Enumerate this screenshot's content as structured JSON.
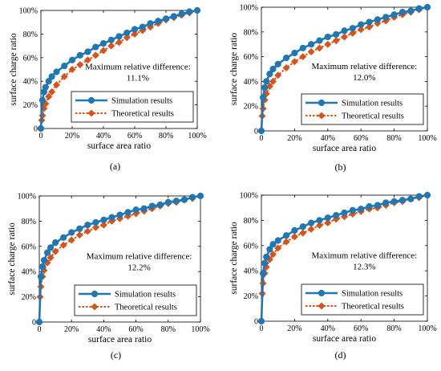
{
  "chart_data": [
    {
      "type": "line",
      "caption": "(a)",
      "xlabel": "surface area ratio",
      "ylabel": "surface charge ratio",
      "xlim": [
        0,
        100
      ],
      "ylim": [
        0,
        100
      ],
      "xticks": [
        "0",
        "20%",
        "40%",
        "60%",
        "80%",
        "100%"
      ],
      "yticks": [
        "0",
        "20%",
        "40%",
        "60%",
        "80%",
        "100%"
      ],
      "annotation": [
        "Maximum relative difference:",
        "11.1%"
      ],
      "legend_position": "lower-right",
      "series": [
        {
          "name": "Simulation results",
          "color": "#1f77b4",
          "marker": "circle",
          "x": [
            0,
            1,
            2,
            3,
            5,
            7,
            10,
            15,
            20,
            25,
            30,
            35,
            40,
            45,
            50,
            55,
            60,
            65,
            70,
            75,
            80,
            85,
            90,
            95,
            100
          ],
          "y": [
            0,
            24,
            31,
            35,
            40,
            44,
            48,
            53,
            58,
            62,
            65,
            69,
            72,
            75,
            78,
            81,
            84,
            86,
            89,
            91,
            93,
            95,
            97,
            99,
            100
          ]
        },
        {
          "name": "Theoretical results",
          "color": "#d95319",
          "marker": "diamond",
          "x": [
            0,
            0.5,
            1,
            2,
            3,
            5,
            7,
            10,
            15,
            20,
            25,
            30,
            35,
            40,
            45,
            50,
            55,
            60,
            65,
            70,
            75,
            80,
            85,
            90,
            95,
            100
          ],
          "y": [
            0,
            7,
            11,
            17,
            21,
            27,
            31,
            37,
            44,
            50,
            54,
            58,
            62,
            66,
            70,
            73,
            77,
            80,
            83,
            86,
            89,
            92,
            94,
            96,
            98,
            100
          ]
        }
      ]
    },
    {
      "type": "line",
      "caption": "(b)",
      "xlabel": "surface area ratio",
      "ylabel": "surface charge ratio",
      "xlim": [
        0,
        100
      ],
      "ylim": [
        0,
        100
      ],
      "xticks": [
        "0",
        "20%",
        "40%",
        "60%",
        "80%",
        "100%"
      ],
      "yticks": [
        "0",
        "20%",
        "40%",
        "60%",
        "80%",
        "100%"
      ],
      "annotation": [
        "Maximum relative difference:",
        "12.0%"
      ],
      "legend_position": "lower-right",
      "series": [
        {
          "name": "Simulation results",
          "color": "#1f77b4",
          "marker": "circle",
          "x": [
            0,
            1,
            2,
            3,
            5,
            7,
            10,
            15,
            20,
            25,
            30,
            35,
            40,
            45,
            50,
            55,
            60,
            65,
            70,
            75,
            80,
            85,
            90,
            95,
            100
          ],
          "y": [
            0,
            27,
            35,
            40,
            46,
            50,
            54,
            59,
            63,
            67,
            70,
            73,
            76,
            78,
            81,
            83,
            86,
            88,
            90,
            92,
            94,
            96,
            97,
            99,
            100
          ]
        },
        {
          "name": "Theoretical results",
          "color": "#d95319",
          "marker": "diamond",
          "x": [
            0,
            0.5,
            1,
            2,
            3,
            5,
            7,
            10,
            15,
            20,
            25,
            30,
            35,
            40,
            45,
            50,
            55,
            60,
            65,
            70,
            75,
            80,
            85,
            90,
            95,
            100
          ],
          "y": [
            0,
            12,
            18,
            25,
            30,
            36,
            40,
            45,
            51,
            56,
            60,
            64,
            67,
            70,
            73,
            76,
            79,
            82,
            84,
            87,
            89,
            92,
            94,
            96,
            98,
            100
          ]
        }
      ]
    },
    {
      "type": "line",
      "caption": "(c)",
      "xlabel": "surface area ratio",
      "ylabel": "surface charge ratio",
      "xlim": [
        0,
        100
      ],
      "ylim": [
        0,
        100
      ],
      "xticks": [
        "0",
        "20%",
        "40%",
        "60%",
        "80%",
        "100%"
      ],
      "yticks": [
        "0",
        "20%",
        "40%",
        "60%",
        "80%",
        "100%"
      ],
      "annotation": [
        "Maximum relative difference:",
        "12.2%"
      ],
      "legend_position": "lower-right",
      "series": [
        {
          "name": "Simulation results",
          "color": "#1f77b4",
          "marker": "circle",
          "x": [
            0,
            1,
            2,
            3,
            5,
            7,
            10,
            15,
            20,
            25,
            30,
            35,
            40,
            45,
            50,
            55,
            60,
            65,
            70,
            75,
            80,
            85,
            90,
            95,
            100
          ],
          "y": [
            0,
            36,
            44,
            49,
            55,
            59,
            63,
            67,
            71,
            74,
            77,
            79,
            81,
            83,
            85,
            87,
            89,
            90,
            92,
            93,
            95,
            96,
            97,
            99,
            100
          ]
        },
        {
          "name": "Theoretical results",
          "color": "#d95319",
          "marker": "diamond",
          "x": [
            0,
            0.5,
            1,
            2,
            3,
            5,
            7,
            10,
            15,
            20,
            25,
            30,
            35,
            40,
            45,
            50,
            55,
            60,
            65,
            70,
            75,
            80,
            85,
            90,
            95,
            100
          ],
          "y": [
            0,
            20,
            28,
            36,
            41,
            47,
            51,
            56,
            61,
            65,
            69,
            72,
            75,
            77,
            80,
            82,
            84,
            86,
            88,
            90,
            92,
            94,
            95,
            97,
            98,
            100
          ]
        }
      ]
    },
    {
      "type": "line",
      "caption": "(d)",
      "xlabel": "surface area ratio",
      "ylabel": "surface charge ratio",
      "xlim": [
        0,
        100
      ],
      "ylim": [
        0,
        100
      ],
      "xticks": [
        "0",
        "20%",
        "40%",
        "60%",
        "80%",
        "100%"
      ],
      "yticks": [
        "0",
        "20%",
        "40%",
        "60%",
        "80%",
        "100%"
      ],
      "annotation": [
        "Maximum relative difference:",
        "12.3%"
      ],
      "legend_position": "lower-right",
      "series": [
        {
          "name": "Simulation results",
          "color": "#1f77b4",
          "marker": "circle",
          "x": [
            0,
            1,
            2,
            3,
            5,
            7,
            10,
            15,
            20,
            25,
            30,
            35,
            40,
            45,
            50,
            55,
            60,
            65,
            70,
            75,
            80,
            85,
            90,
            95,
            100
          ],
          "y": [
            0,
            38,
            46,
            51,
            57,
            61,
            64,
            68,
            72,
            75,
            78,
            80,
            82,
            84,
            86,
            88,
            89,
            91,
            92,
            94,
            95,
            96,
            97,
            99,
            100
          ]
        },
        {
          "name": "Theoretical results",
          "color": "#d95319",
          "marker": "diamond",
          "x": [
            0,
            0.5,
            1,
            2,
            3,
            5,
            7,
            10,
            15,
            20,
            25,
            30,
            35,
            40,
            45,
            50,
            55,
            60,
            65,
            70,
            75,
            80,
            85,
            90,
            95,
            100
          ],
          "y": [
            0,
            22,
            30,
            38,
            43,
            49,
            53,
            58,
            63,
            67,
            70,
            73,
            76,
            78,
            81,
            83,
            85,
            87,
            89,
            90,
            92,
            94,
            95,
            97,
            98,
            100
          ]
        }
      ]
    }
  ]
}
